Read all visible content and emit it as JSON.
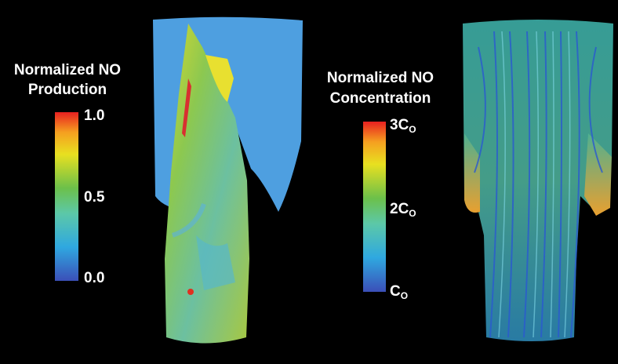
{
  "left_panel": {
    "colorbar": {
      "title": [
        "Normalized NO",
        "Production"
      ],
      "ticks": [
        "1.0",
        "0.5",
        "0.0"
      ]
    }
  },
  "right_panel": {
    "colorbar": {
      "title": [
        "Normalized NO",
        "Concentration"
      ],
      "ticks": [
        {
          "base": "3C",
          "sub": "O"
        },
        {
          "base": "2C",
          "sub": "O"
        },
        {
          "base": "C",
          "sub": "O"
        }
      ]
    }
  }
}
